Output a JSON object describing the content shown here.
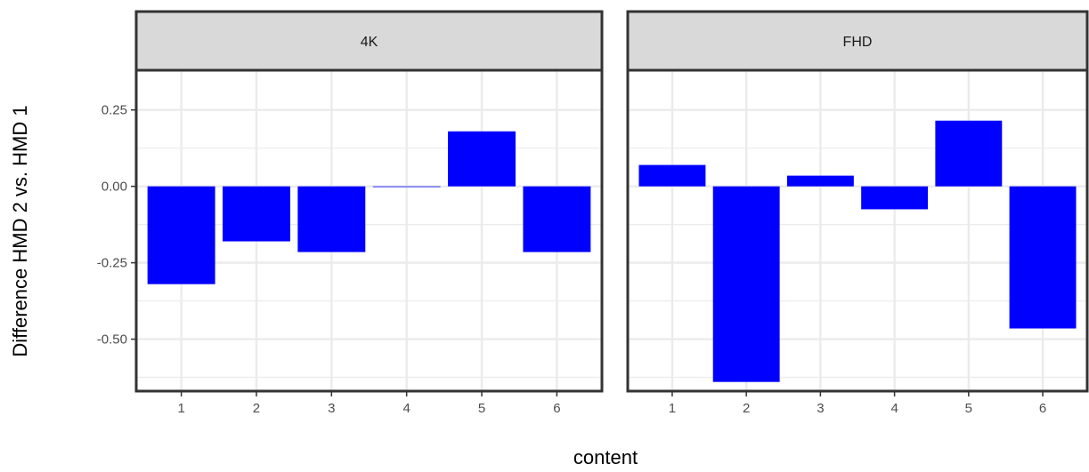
{
  "chart_data": {
    "type": "bar",
    "xlabel": "content",
    "ylabel": "Difference HMD 2 vs. HMD 1",
    "ylim": [
      -0.67,
      0.38
    ],
    "y_ticks": [
      {
        "value": 0.25,
        "label": "0.25"
      },
      {
        "value": 0.0,
        "label": "0.00"
      },
      {
        "value": -0.25,
        "label": "-0.25"
      },
      {
        "value": -0.5,
        "label": "-0.50"
      }
    ],
    "y_minor_gridlines": [
      0.125,
      -0.125,
      -0.375,
      -0.625
    ],
    "categories": [
      "1",
      "2",
      "3",
      "4",
      "5",
      "6"
    ],
    "bar_color": "#0000ff",
    "grid": true,
    "panels": [
      {
        "label": "4K",
        "values": [
          -0.32,
          -0.18,
          -0.215,
          0.0,
          0.18,
          -0.215
        ]
      },
      {
        "label": "FHD",
        "values": [
          0.07,
          -0.64,
          0.035,
          -0.075,
          0.215,
          -0.465
        ]
      }
    ]
  }
}
